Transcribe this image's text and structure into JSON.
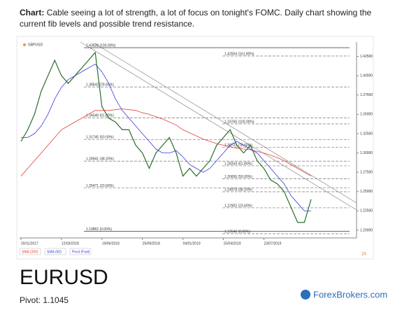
{
  "caption": {
    "label": "Chart:",
    "text": "Cable seeing a lot of strength, a lot of focus on tonight's FOMC. Daily chart showing the current fib levels and possible trend resistance."
  },
  "chart_data": {
    "type": "line",
    "title": "GBPUSD",
    "categories": [
      "20/11/2017",
      null,
      null,
      null,
      null,
      null,
      "12/03/2018",
      null,
      null,
      null,
      null,
      null,
      "19/06/2018",
      null,
      null,
      null,
      null,
      null,
      "25/09/2018",
      null,
      null,
      null,
      null,
      null,
      "04/01/2019",
      null,
      null,
      null,
      null,
      null,
      "15/04/2019",
      null,
      null,
      null,
      null,
      null,
      "23/07/2019",
      null,
      null,
      null,
      null,
      null,
      null,
      null
    ],
    "series": [
      {
        "name": "GBPUSD",
        "color": "#2b6e2b",
        "values": [
          1.315,
          1.33,
          1.35,
          1.38,
          1.4,
          1.42,
          1.4,
          1.39,
          1.4,
          1.41,
          1.42,
          1.43,
          1.36,
          1.345,
          1.34,
          1.33,
          1.33,
          1.31,
          1.3,
          1.28,
          1.3,
          1.31,
          1.32,
          1.3,
          1.27,
          1.28,
          1.27,
          1.28,
          1.29,
          1.31,
          1.32,
          1.33,
          1.31,
          1.3,
          1.31,
          1.29,
          1.28,
          1.265,
          1.26,
          1.25,
          1.23,
          1.21,
          1.21,
          1.24
        ]
      },
      {
        "name": "SMA (200)",
        "color": "#e0413a",
        "values": [
          1.27,
          1.28,
          1.29,
          1.3,
          1.31,
          1.32,
          1.33,
          1.335,
          1.34,
          1.345,
          1.35,
          1.355,
          1.355,
          1.355,
          1.356,
          1.357,
          1.356,
          1.355,
          1.352,
          1.35,
          1.347,
          1.344,
          1.34,
          1.336,
          1.33,
          1.326,
          1.322,
          1.318,
          1.315,
          1.312,
          1.31,
          1.308,
          1.306,
          1.305,
          1.304,
          1.302,
          1.3,
          1.297,
          1.294,
          1.29,
          1.285,
          1.28,
          1.275,
          1.27
        ]
      },
      {
        "name": "SMA (50)",
        "color": "#3b3bd6",
        "values": [
          1.32,
          1.32,
          1.325,
          1.335,
          1.35,
          1.37,
          1.385,
          1.395,
          1.4,
          1.405,
          1.41,
          1.415,
          1.405,
          1.39,
          1.37,
          1.355,
          1.345,
          1.335,
          1.325,
          1.315,
          1.305,
          1.3,
          1.3,
          1.303,
          1.295,
          1.285,
          1.28,
          1.275,
          1.28,
          1.29,
          1.3,
          1.31,
          1.315,
          1.31,
          1.305,
          1.3,
          1.29,
          1.28,
          1.27,
          1.26,
          1.245,
          1.235,
          1.225,
          1.225
        ]
      }
    ],
    "pivot_label": "Pivot (Fwd)",
    "fib_levels": [
      {
        "value": 1.43628,
        "label": "1.43628 (100.00%)"
      },
      {
        "value": 1.38542,
        "label": "1.38542 (78.60%)"
      },
      {
        "value": 1.34549,
        "label": "1.34549 (61.80%)"
      },
      {
        "value": 1.31745,
        "label": "1.31745 (50.00%)"
      },
      {
        "value": 1.28941,
        "label": "1.28941 (38.20%)"
      },
      {
        "value": 1.25471,
        "label": "1.25471 (23.60%)"
      },
      {
        "value": 1.19862,
        "label": "1.19862 (0.00%)"
      },
      {
        "value": 1.42554,
        "label": "1.42554 (161.80%)"
      },
      {
        "value": 1.33766,
        "label": "1.33766 (100.00%)"
      },
      {
        "value": 1.30723,
        "label": "1.30723 (78.60%)"
      },
      {
        "value": 1.28334,
        "label": "1.28334 (61.80%)"
      },
      {
        "value": 1.26656,
        "label": "1.26656 (50.00%)"
      },
      {
        "value": 1.24978,
        "label": "1.24978 (38.20%)"
      },
      {
        "value": 1.22902,
        "label": "1.22902 (23.60%)"
      },
      {
        "value": 1.19546,
        "label": "1.19546 (0.00%)"
      }
    ],
    "ylim": [
      1.19,
      1.44
    ],
    "yticks": [
      {
        "value": 1.2,
        "label": "1.20000"
      },
      {
        "value": 1.225,
        "label": "1.22500"
      },
      {
        "value": 1.25,
        "label": "1.25000"
      },
      {
        "value": 1.275,
        "label": "1.27500"
      },
      {
        "value": 1.3,
        "label": "1.30000"
      },
      {
        "value": 1.325,
        "label": "1.32500"
      },
      {
        "value": 1.35,
        "label": "1.35000"
      },
      {
        "value": 1.375,
        "label": "1.37500"
      },
      {
        "value": 1.4,
        "label": "1.40000"
      },
      {
        "value": 1.425,
        "label": "1.42500"
      }
    ],
    "grid": false
  },
  "heading": "EURUSD",
  "pivot": "Pivot: 1.1045",
  "logo": "ForexBrokers.com"
}
